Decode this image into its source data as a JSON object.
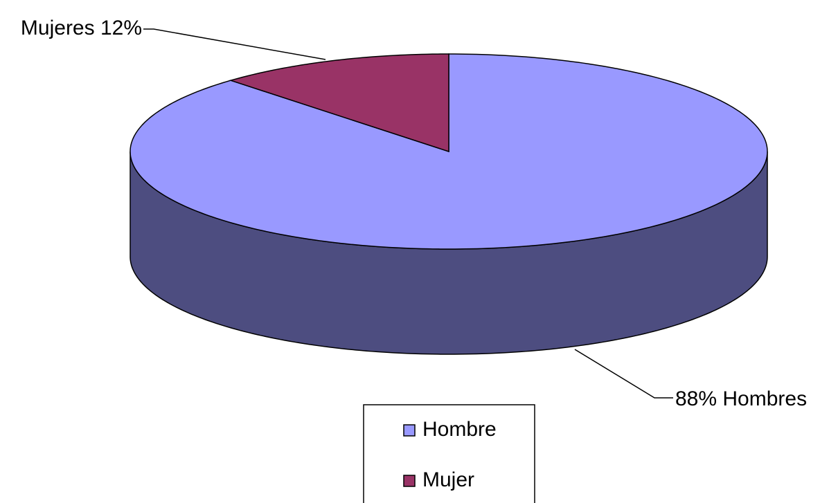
{
  "chart_data": {
    "type": "pie3d",
    "categories": [
      "Hombre",
      "Mujer"
    ],
    "values": [
      88,
      12
    ],
    "value_labels": [
      "88%  Hombres",
      "Mujeres 12%"
    ],
    "colors": [
      "#9999ff",
      "#993366"
    ],
    "legend": "bottom"
  }
}
